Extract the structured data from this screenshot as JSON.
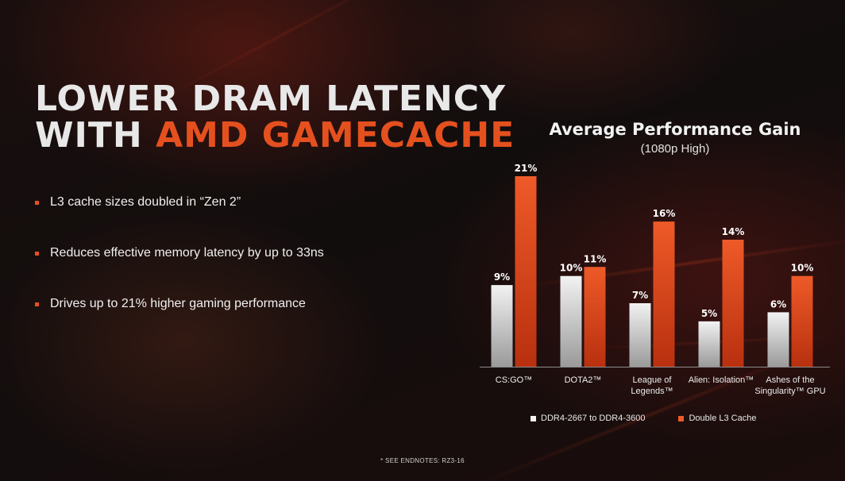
{
  "slide": {
    "title_line1": "LOWER DRAM LATENCY",
    "title_line2_prefix": "WITH",
    "title_line2_accent": "AMD GAMECACHE",
    "bullets": [
      "L3 cache sizes doubled in “Zen 2”",
      "Reduces effective memory latency by up to 33ns",
      "Drives up to 21% higher gaming performance"
    ],
    "footnote": "* SEE ENDNOTES: RZ3-16"
  },
  "colors": {
    "accent": "#e5501f",
    "bar_gray_light": "#f2f2f2",
    "bar_gray_dark": "#9a9a9a",
    "bar_orange_light": "#ee5a28",
    "bar_orange_dark": "#b8300f"
  },
  "chart_data": {
    "type": "bar",
    "title": "Average Performance Gain",
    "subtitle": "(1080p High)",
    "categories": [
      [
        "CS:GO™"
      ],
      [
        "DOTA2™"
      ],
      [
        "League of",
        "Legends™"
      ],
      [
        "Alien: Isolation™"
      ],
      [
        "Ashes of the",
        "Singularity™ GPU"
      ]
    ],
    "series": [
      {
        "name": "DDR4-2667 to DDR4-3600",
        "values": [
          9,
          10,
          7,
          5,
          6
        ],
        "labels": [
          "9%",
          "10%",
          "7%",
          "5%",
          "6%"
        ]
      },
      {
        "name": "Double L3 Cache",
        "values": [
          21,
          11,
          16,
          14,
          10
        ],
        "labels": [
          "21%",
          "11%",
          "16%",
          "14%",
          "10%"
        ]
      }
    ],
    "ylim": [
      0,
      21
    ],
    "grid": false,
    "legend": "bottom"
  }
}
